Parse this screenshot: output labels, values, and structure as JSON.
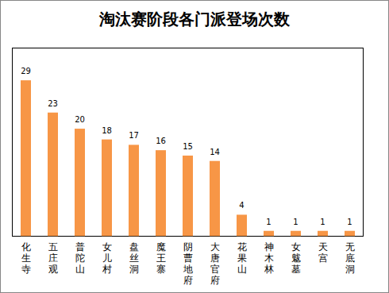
{
  "chart_data": {
    "type": "bar",
    "title": "淘汰赛阶段各门派登场次数",
    "categories": [
      "化生寺",
      "五庄观",
      "普陀山",
      "女儿村",
      "盘丝洞",
      "魔王寨",
      "阴曹地府",
      "大唐官府",
      "花果山",
      "神木林",
      "女魃墓",
      "天宫",
      "无底洞"
    ],
    "values": [
      29,
      23,
      20,
      18,
      17,
      16,
      15,
      14,
      4,
      1,
      1,
      1,
      1
    ],
    "color": "#f79646",
    "ylim": [
      0,
      35
    ],
    "grid": false,
    "data_labels": true,
    "tick_labels": "x"
  }
}
